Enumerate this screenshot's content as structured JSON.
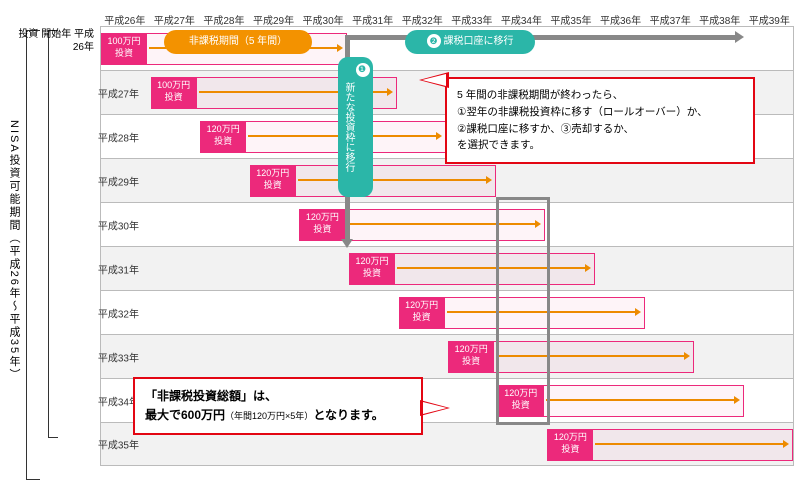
{
  "type": "timeline-gantt",
  "vtitle": "NISA投資可能期間（平成26年〜平成35年）",
  "headers": [
    "平成26年",
    "平成27年",
    "平成28年",
    "平成29年",
    "平成30年",
    "平成31年",
    "平成32年",
    "平成33年",
    "平成34年",
    "平成35年",
    "平成36年",
    "平成37年",
    "平成38年",
    "平成39年"
  ],
  "rowlabel_top": "投資\n開始年\n平成26年",
  "cell_w": 49.6,
  "rows": [
    {
      "label": "",
      "start": 0,
      "amount": "100万円\n投資"
    },
    {
      "label": "平成27年",
      "start": 1,
      "amount": "100万円\n投資"
    },
    {
      "label": "平成28年",
      "start": 2,
      "amount": "120万円\n投資"
    },
    {
      "label": "平成29年",
      "start": 3,
      "amount": "120万円\n投資"
    },
    {
      "label": "平成30年",
      "start": 4,
      "amount": "120万円\n投資"
    },
    {
      "label": "平成31年",
      "start": 5,
      "amount": "120万円\n投資"
    },
    {
      "label": "平成32年",
      "start": 6,
      "amount": "120万円\n投資"
    },
    {
      "label": "平成33年",
      "start": 7,
      "amount": "120万円\n投資"
    },
    {
      "label": "平成34年",
      "start": 8,
      "amount": "120万円\n投資"
    },
    {
      "label": "平成35年",
      "start": 9,
      "amount": "120万円\n投資"
    }
  ],
  "pill_orange": "非課税期間（5 年間）",
  "pill_teal": "課税口座に移行",
  "vert_teal": "新たな投資枠に移行",
  "msg1_lines": [
    "5 年間の非課税期間が終わったら、",
    "①翌年の非課税投資枠に移す（ロールオーバー）か、",
    "②課税口座に移すか、③売却するか、",
    "を選択できます。"
  ],
  "msg2_a": "「非課税投資総額」は、",
  "msg2_b": "最大で600万円",
  "msg2_c": "（年間120万円×5年）",
  "msg2_d": "となります。",
  "colors": {
    "pink": "#ec297b",
    "orange": "#f39200",
    "teal": "#2bb6a8",
    "arrow": "#ed8b00",
    "red": "#e30613",
    "gray": "#888"
  }
}
